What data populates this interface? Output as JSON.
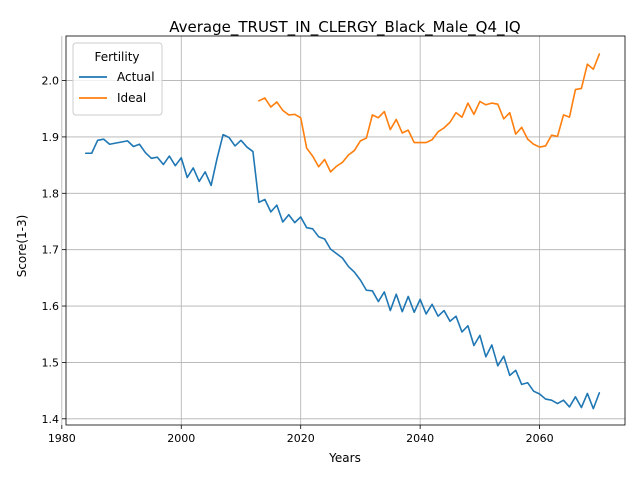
{
  "chart_data": {
    "type": "line",
    "title": "Average_TRUST_IN_CLERGY_Black_Male_Q4_IQ",
    "xlabel": "Years",
    "ylabel": "Score(1-3)",
    "xlim": [
      1980.7,
      2074.3
    ],
    "ylim": [
      1.389,
      2.079
    ],
    "xticks": [
      1980,
      2000,
      2020,
      2040,
      2060
    ],
    "yticks": [
      1.4,
      1.5,
      1.6,
      1.7,
      1.8,
      1.9,
      2.0
    ],
    "xtick_labels": [
      "1980",
      "2000",
      "2020",
      "2040",
      "2060"
    ],
    "ytick_labels": [
      "1.4",
      "1.5",
      "1.6",
      "1.7",
      "1.8",
      "1.9",
      "2.0"
    ],
    "grid": true,
    "legend": {
      "title": "Fertility",
      "placement": "upper-left"
    },
    "series": [
      {
        "name": "Actual",
        "color": "#1f77b4",
        "x": [
          1984,
          1985,
          1986,
          1987,
          1988,
          1989,
          1990,
          1991,
          1992,
          1993,
          1994,
          1995,
          1996,
          1997,
          1998,
          1999,
          2000,
          2001,
          2002,
          2003,
          2004,
          2005,
          2006,
          2007,
          2008,
          2009,
          2010,
          2011,
          2012,
          2013,
          2014,
          2015,
          2016,
          2017,
          2018,
          2019,
          2020,
          2021,
          2022,
          2023,
          2024,
          2025,
          2026,
          2027,
          2028,
          2029,
          2030,
          2031,
          2032,
          2033,
          2034,
          2035,
          2036,
          2037,
          2038,
          2039,
          2040,
          2041,
          2042,
          2043,
          2044,
          2045,
          2046,
          2047,
          2048,
          2049,
          2050,
          2051,
          2052,
          2053,
          2054,
          2055,
          2056,
          2057,
          2058,
          2059,
          2060,
          2061,
          2062,
          2063,
          2064,
          2065,
          2066,
          2067,
          2068,
          2069,
          2070
        ],
        "values": [
          1.871,
          1.871,
          1.894,
          1.896,
          1.887,
          1.889,
          1.891,
          1.893,
          1.883,
          1.887,
          1.872,
          1.862,
          1.864,
          1.851,
          1.866,
          1.849,
          1.863,
          1.828,
          1.845,
          1.821,
          1.838,
          1.814,
          1.862,
          1.904,
          1.899,
          1.884,
          1.894,
          1.882,
          1.874,
          1.784,
          1.789,
          1.767,
          1.779,
          1.749,
          1.762,
          1.748,
          1.758,
          1.739,
          1.737,
          1.723,
          1.719,
          1.701,
          1.693,
          1.685,
          1.67,
          1.66,
          1.646,
          1.628,
          1.627,
          1.608,
          1.625,
          1.592,
          1.621,
          1.59,
          1.617,
          1.589,
          1.612,
          1.586,
          1.603,
          1.582,
          1.592,
          1.573,
          1.582,
          1.554,
          1.565,
          1.53,
          1.548,
          1.51,
          1.531,
          1.494,
          1.511,
          1.477,
          1.486,
          1.461,
          1.464,
          1.449,
          1.444,
          1.435,
          1.433,
          1.427,
          1.433,
          1.421,
          1.439,
          1.42,
          1.445,
          1.418,
          1.446
        ]
      },
      {
        "name": "Ideal",
        "color": "#ff7f0e",
        "x": [
          2013,
          2014,
          2015,
          2016,
          2017,
          2018,
          2019,
          2020,
          2021,
          2022,
          2023,
          2024,
          2025,
          2026,
          2027,
          2028,
          2029,
          2030,
          2031,
          2032,
          2033,
          2034,
          2035,
          2036,
          2037,
          2038,
          2039,
          2040,
          2041,
          2042,
          2043,
          2044,
          2045,
          2046,
          2047,
          2048,
          2049,
          2050,
          2051,
          2052,
          2053,
          2054,
          2055,
          2056,
          2057,
          2058,
          2059,
          2060,
          2061,
          2062,
          2063,
          2064,
          2065,
          2066,
          2067,
          2068,
          2069,
          2070
        ],
        "values": [
          1.964,
          1.969,
          1.953,
          1.962,
          1.947,
          1.939,
          1.94,
          1.934,
          1.88,
          1.866,
          1.847,
          1.86,
          1.838,
          1.848,
          1.855,
          1.868,
          1.876,
          1.893,
          1.898,
          1.939,
          1.934,
          1.945,
          1.913,
          1.931,
          1.907,
          1.912,
          1.89,
          1.89,
          1.89,
          1.895,
          1.909,
          1.916,
          1.926,
          1.943,
          1.935,
          1.96,
          1.94,
          1.963,
          1.957,
          1.96,
          1.958,
          1.932,
          1.943,
          1.905,
          1.917,
          1.896,
          1.887,
          1.882,
          1.884,
          1.903,
          1.901,
          1.939,
          1.935,
          1.984,
          1.986,
          2.029,
          2.02,
          2.047
        ]
      }
    ]
  }
}
